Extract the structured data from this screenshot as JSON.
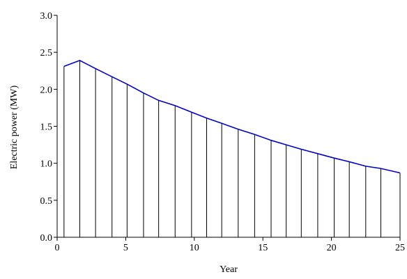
{
  "chart_data": {
    "type": "area",
    "title": "",
    "xlabel": "Year",
    "ylabel": "Electric power (MW)",
    "xlim": [
      0,
      25
    ],
    "ylim": [
      0,
      3
    ],
    "x_ticks": [
      0,
      5,
      10,
      15,
      20,
      25
    ],
    "x_tick_labels": [
      "0",
      "5",
      "10",
      "15",
      "20",
      "25"
    ],
    "y_ticks": [
      0,
      0.5,
      1,
      1.5,
      2,
      2.5,
      3
    ],
    "y_tick_labels": [
      "0.0",
      "0.5",
      "1.0",
      "1.5",
      "2.0",
      "2.5",
      "3.0"
    ],
    "grid": false,
    "legend": "none",
    "line_color": "#0000cc",
    "hatch_color": "#000000",
    "series": [
      {
        "x": [
          0.5,
          1.65,
          2.8,
          4.0,
          5.1,
          6.3,
          7.4,
          8.6,
          9.8,
          10.9,
          12.0,
          13.2,
          14.4,
          15.6,
          16.7,
          17.8,
          19.0,
          20.2,
          21.3,
          22.5,
          23.6,
          25.0
        ],
        "values": [
          2.31,
          2.39,
          2.28,
          2.17,
          2.07,
          1.95,
          1.85,
          1.78,
          1.69,
          1.61,
          1.54,
          1.46,
          1.39,
          1.31,
          1.25,
          1.19,
          1.13,
          1.07,
          1.02,
          0.96,
          0.93,
          0.87
        ]
      }
    ]
  }
}
